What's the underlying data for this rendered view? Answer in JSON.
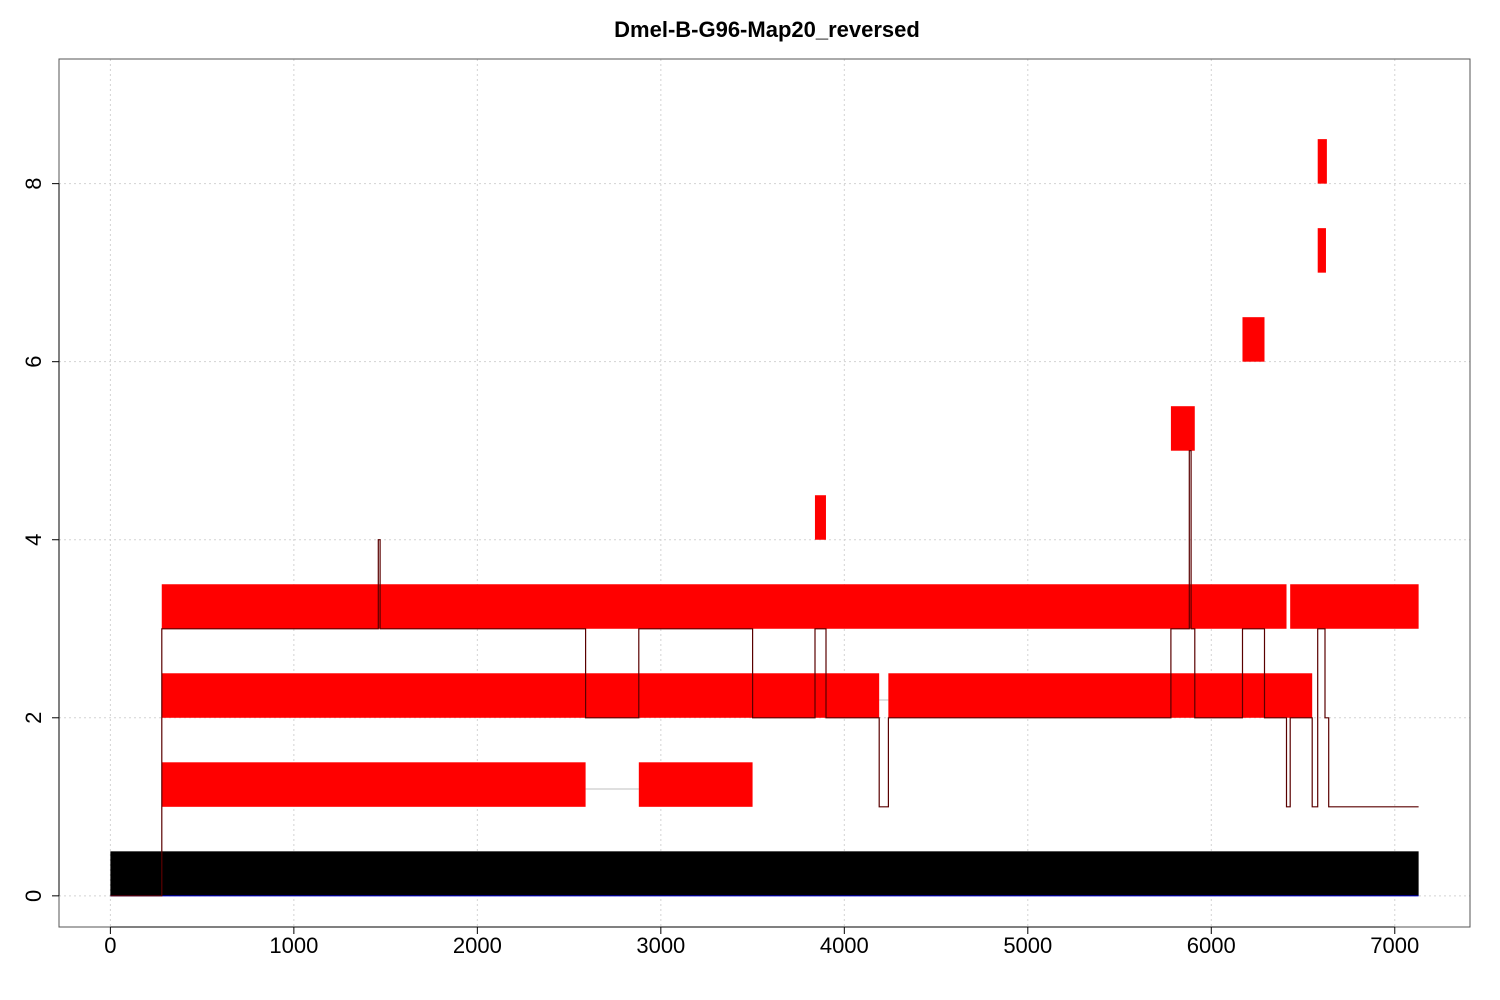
{
  "chart_data": {
    "type": "bar",
    "title": "Dmel-B-G96-Map20_reversed",
    "xlabel": "",
    "ylabel": "",
    "xlim": [
      -280,
      7410
    ],
    "ylim": [
      -0.35,
      9.4
    ],
    "x_ticks": [
      0,
      1000,
      2000,
      3000,
      4000,
      5000,
      6000,
      7000
    ],
    "y_ticks": [
      0,
      2,
      4,
      6,
      8
    ],
    "grid": true,
    "colors": {
      "reference": "#000000",
      "segments": "#ff0000",
      "coverage": "#5a0000",
      "gap": "#bfbfbf",
      "baseline": "#0000cc"
    },
    "reference_bar": {
      "x_start": 0,
      "x_end": 7130,
      "y_bottom": 0,
      "y_top": 0.5
    },
    "segments": [
      {
        "x_start": 280,
        "x_end": 2590,
        "y_bottom": 1,
        "y_top": 1.5
      },
      {
        "x_start": 2880,
        "x_end": 3500,
        "y_bottom": 1,
        "y_top": 1.5
      },
      {
        "x_start": 280,
        "x_end": 4190,
        "y_bottom": 2,
        "y_top": 2.5
      },
      {
        "x_start": 4240,
        "x_end": 6550,
        "y_bottom": 2,
        "y_top": 2.5
      },
      {
        "x_start": 280,
        "x_end": 6410,
        "y_bottom": 3,
        "y_top": 3.5
      },
      {
        "x_start": 6430,
        "x_end": 7130,
        "y_bottom": 3,
        "y_top": 3.5
      },
      {
        "x_start": 3840,
        "x_end": 3900,
        "y_bottom": 4,
        "y_top": 4.5
      },
      {
        "x_start": 5780,
        "x_end": 5910,
        "y_bottom": 5,
        "y_top": 5.5
      },
      {
        "x_start": 6170,
        "x_end": 6290,
        "y_bottom": 6,
        "y_top": 6.5
      },
      {
        "x_start": 6580,
        "x_end": 6625,
        "y_bottom": 7,
        "y_top": 7.5
      },
      {
        "x_start": 6580,
        "x_end": 6630,
        "y_bottom": 8,
        "y_top": 8.5
      }
    ],
    "gaps": [
      {
        "x_start": 2590,
        "x_end": 2880,
        "y": 1.2
      },
      {
        "x_start": 4190,
        "x_end": 4240,
        "y": 2.2
      }
    ],
    "coverage_line": {
      "x": [
        0,
        280,
        280,
        1460,
        1460,
        1470,
        1470,
        2590,
        2590,
        2880,
        2880,
        3500,
        3500,
        3840,
        3840,
        3900,
        3900,
        4190,
        4190,
        4240,
        4240,
        5780,
        5780,
        5880,
        5880,
        5890,
        5890,
        5910,
        5910,
        6170,
        6170,
        6290,
        6290,
        6410,
        6410,
        6430,
        6430,
        6550,
        6550,
        6580,
        6580,
        6620,
        6620,
        6640,
        6640,
        7130
      ],
      "y": [
        0,
        0,
        3,
        3,
        4,
        4,
        3,
        3,
        2,
        2,
        3,
        3,
        2,
        2,
        3,
        3,
        2,
        2,
        1,
        1,
        2,
        2,
        3,
        3,
        5,
        5,
        3,
        3,
        2,
        2,
        3,
        3,
        2,
        2,
        1,
        1,
        2,
        2,
        1,
        1,
        3,
        3,
        2,
        2,
        1,
        1
      ]
    }
  }
}
